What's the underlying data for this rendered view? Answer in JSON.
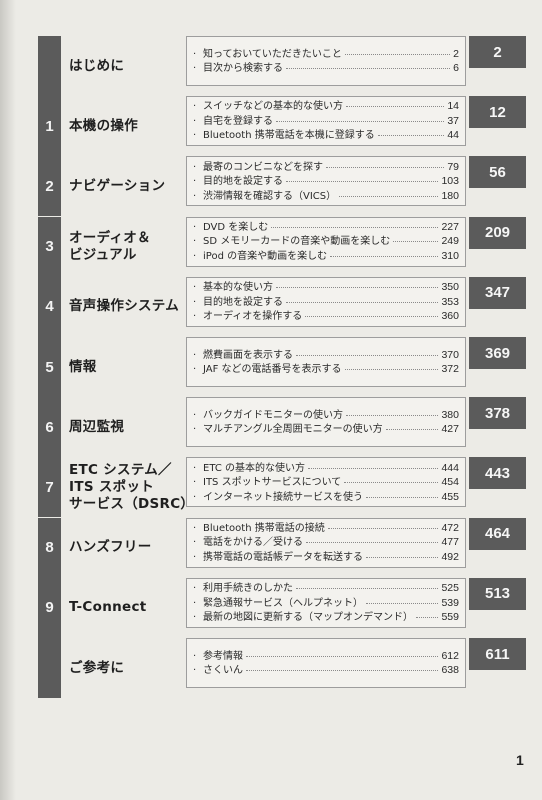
{
  "sections": [
    {
      "num": "",
      "title": "はじめに",
      "page": "2",
      "items": [
        {
          "label": "知っておいていただきたいこと",
          "page": "2"
        },
        {
          "label": "目次から検索する",
          "page": "6"
        }
      ]
    },
    {
      "num": "1",
      "title": "本機の操作",
      "page": "12",
      "items": [
        {
          "label": "スイッチなどの基本的な使い方",
          "page": "14"
        },
        {
          "label": "自宅を登録する",
          "page": "37"
        },
        {
          "label": "Bluetooth 携帯電話を本機に登録する",
          "page": "44"
        }
      ]
    },
    {
      "num": "2",
      "title": "ナビゲーション",
      "page": "56",
      "items": [
        {
          "label": "最寄のコンビニなどを探す",
          "page": "79"
        },
        {
          "label": "目的地を設定する",
          "page": "103"
        },
        {
          "label": "渋滞情報を確認する（VICS）",
          "page": "180"
        }
      ]
    },
    {
      "num": "3",
      "title": "オーディオ＆\nビジュアル",
      "page": "209",
      "items": [
        {
          "label": "DVD を楽しむ",
          "page": "227"
        },
        {
          "label": "SD メモリーカードの音楽や動画を楽しむ",
          "page": "249"
        },
        {
          "label": "iPod の音楽や動画を楽しむ",
          "page": "310"
        }
      ]
    },
    {
      "num": "4",
      "title": "音声操作システム",
      "page": "347",
      "items": [
        {
          "label": "基本的な使い方",
          "page": "350"
        },
        {
          "label": "目的地を設定する",
          "page": "353"
        },
        {
          "label": "オーディオを操作する",
          "page": "360"
        }
      ]
    },
    {
      "num": "5",
      "title": "情報",
      "page": "369",
      "items": [
        {
          "label": "燃費画面を表示する",
          "page": "370"
        },
        {
          "label": "JAF などの電話番号を表示する",
          "page": "372"
        }
      ]
    },
    {
      "num": "6",
      "title": "周辺監視",
      "page": "378",
      "items": [
        {
          "label": "バックガイドモニターの使い方",
          "page": "380"
        },
        {
          "label": "マルチアングル全周囲モニターの使い方",
          "page": "427"
        }
      ]
    },
    {
      "num": "7",
      "title": "ETC システム／\nITS スポット\nサービス（DSRC）",
      "page": "443",
      "items": [
        {
          "label": "ETC の基本的な使い方",
          "page": "444"
        },
        {
          "label": "ITS スポットサービスについて",
          "page": "454"
        },
        {
          "label": "インターネット接続サービスを使う",
          "page": "455"
        }
      ]
    },
    {
      "num": "8",
      "title": "ハンズフリー",
      "page": "464",
      "items": [
        {
          "label": "Bluetooth 携帯電話の接続",
          "page": "472"
        },
        {
          "label": "電話をかける／受ける",
          "page": "477"
        },
        {
          "label": "携帯電話の電話帳データを転送する",
          "page": "492"
        }
      ]
    },
    {
      "num": "9",
      "title": "T-Connect",
      "page": "513",
      "items": [
        {
          "label": "利用手続きのしかた",
          "page": "525"
        },
        {
          "label": "緊急通報サービス（ヘルプネット）",
          "page": "539"
        },
        {
          "label": "最新の地図に更新する（マップオンデマンド）",
          "page": "559"
        }
      ]
    },
    {
      "num": "",
      "title": "ご参考に",
      "page": "611",
      "items": [
        {
          "label": "参考情報",
          "page": "612"
        },
        {
          "label": "さくいん",
          "page": "638"
        }
      ]
    }
  ],
  "folio": "1"
}
